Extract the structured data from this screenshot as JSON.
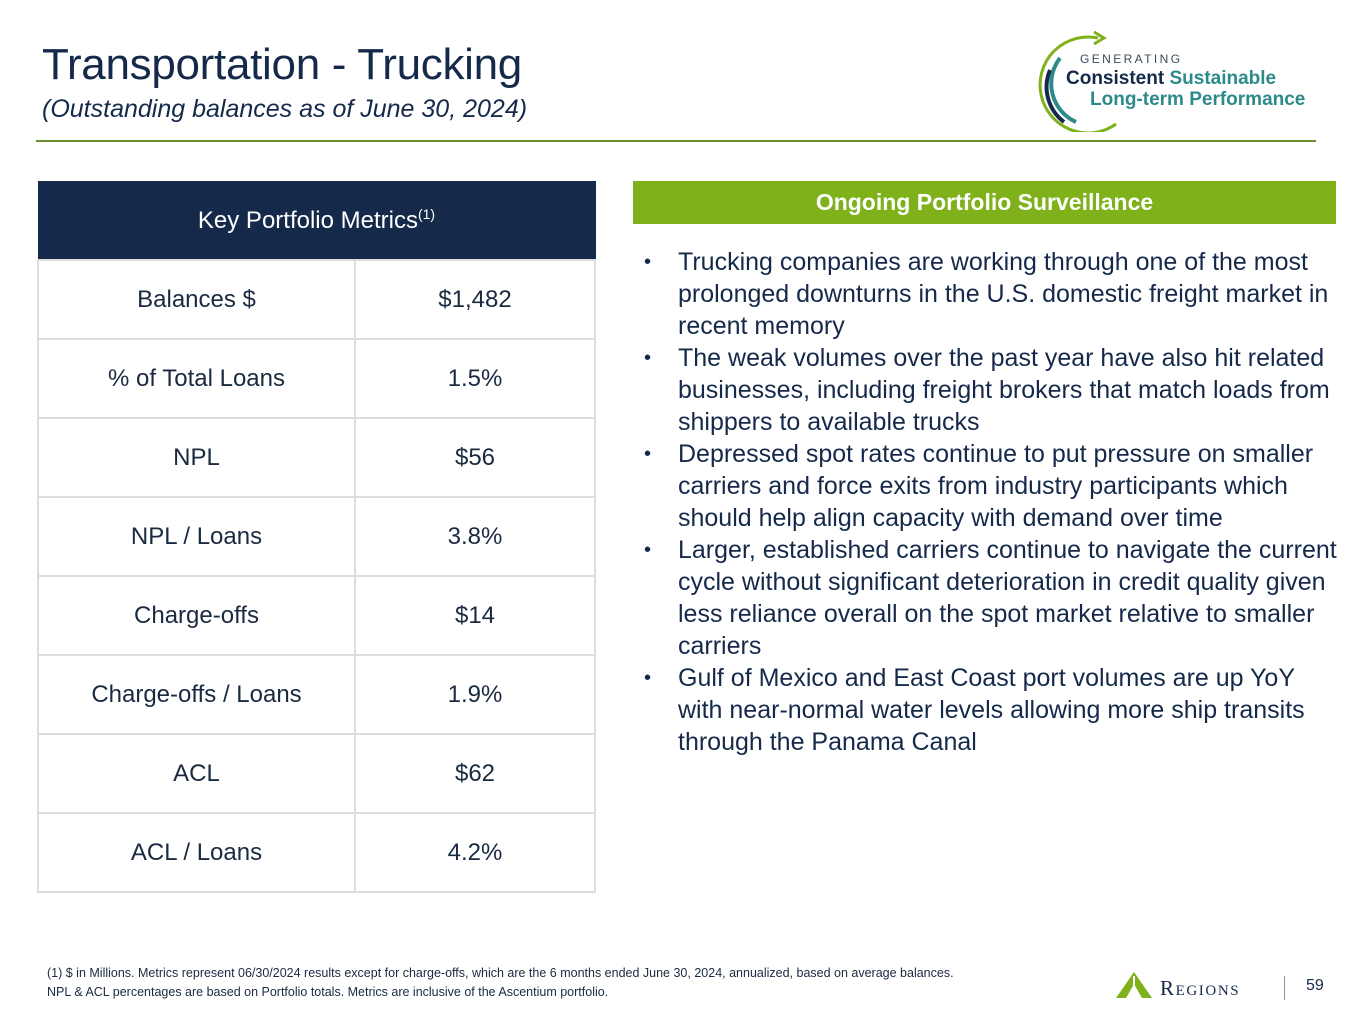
{
  "header": {
    "title": "Transportation - Trucking",
    "subtitle": "(Outstanding balances as of June 30, 2024)"
  },
  "tagline": {
    "small": "GENERATING",
    "line1_a": "Consistent",
    "line1_b": "Sustainable",
    "line2": "Long-term Performance"
  },
  "metrics": {
    "header": "Key Portfolio Metrics",
    "header_sup": "(1)",
    "rows": [
      {
        "label": "Balances $",
        "value": "$1,482"
      },
      {
        "label": "% of Total Loans",
        "value": "1.5%"
      },
      {
        "label": "NPL",
        "value": "$56"
      },
      {
        "label": "NPL / Loans",
        "value": "3.8%"
      },
      {
        "label": "Charge-offs",
        "value": "$14"
      },
      {
        "label": "Charge-offs / Loans",
        "value": "1.9%"
      },
      {
        "label": "ACL",
        "value": "$62"
      },
      {
        "label": "ACL / Loans",
        "value": "4.2%"
      }
    ]
  },
  "surveillance": {
    "header": "Ongoing Portfolio Surveillance",
    "bullets": [
      "Trucking companies are working through one of the most prolonged downturns in the U.S. domestic freight market in recent memory",
      "The weak volumes over the past year have also hit related businesses, including freight brokers that match loads from shippers to available trucks",
      "Depressed spot rates continue to put pressure on smaller carriers and force exits from industry participants which should help align capacity with demand over time",
      "Larger, established carriers continue to navigate the current cycle without significant deterioration in credit quality given less reliance overall on the spot market relative to smaller carriers",
      "Gulf of Mexico and East Coast port volumes are up YoY with near-normal water levels allowing more ship transits through the Panama Canal"
    ]
  },
  "footnote": {
    "line1": "(1) $ in Millions. Metrics represent 06/30/2024 results except for charge-offs, which are the 6 months ended June 30, 2024, annualized, based on average balances.",
    "line2": "NPL & ACL percentages are based on Portfolio totals.  Metrics are inclusive of the Ascentium portfolio."
  },
  "brand": {
    "name": "Regions",
    "page_number": "59"
  },
  "colors": {
    "navy": "#15294a",
    "green": "#7fb11a",
    "teal": "#2e8a8a"
  }
}
